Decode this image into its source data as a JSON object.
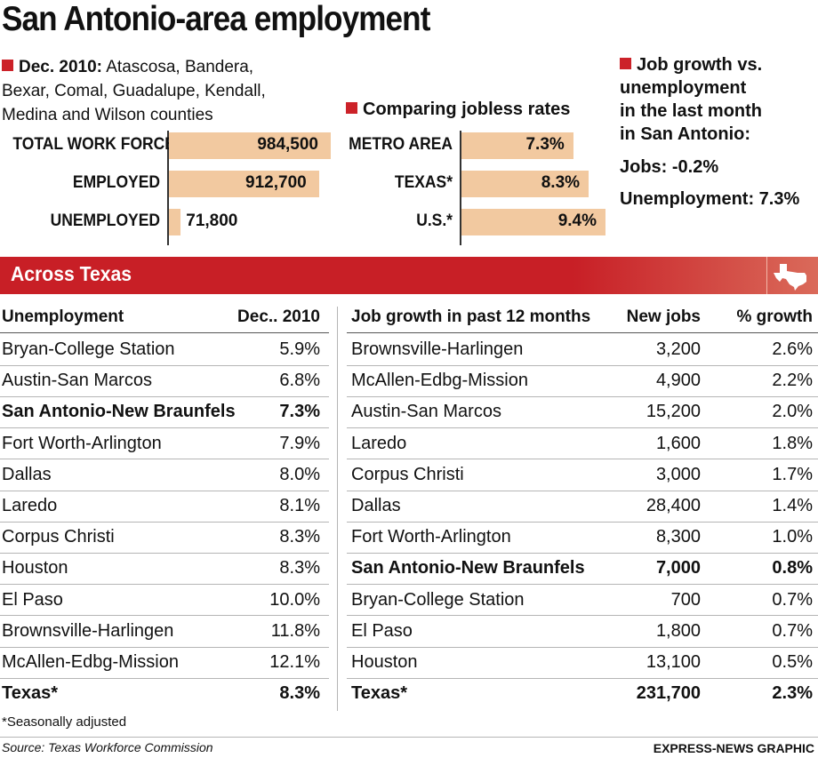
{
  "title": "San Antonio-area employment",
  "intro": {
    "lead": "Dec. 2010:",
    "text": " Atascosa, Bandera, Bexar, Comal, Guadalupe, Kendall, Medina and Wilson counties"
  },
  "workforce": {
    "rows": [
      {
        "label": "TOTAL WORK FORCE",
        "value_label": "984,500",
        "value": 984500
      },
      {
        "label": "EMPLOYED",
        "value_label": "912,700",
        "value": 912700
      },
      {
        "label": "UNEMPLOYED",
        "value_label": "71,800",
        "value": 71800
      }
    ]
  },
  "jobless": {
    "heading": "Comparing jobless rates",
    "rows": [
      {
        "label": "METRO AREA",
        "value_label": "7.3%",
        "value": 7.3
      },
      {
        "label": "TEXAS*",
        "value_label": "8.3%",
        "value": 8.3
      },
      {
        "label": "U.S.*",
        "value_label": "9.4%",
        "value": 9.4
      }
    ]
  },
  "growth_box": {
    "heading_lines": [
      "Job growth vs.",
      "unemployment",
      "in the last month",
      "in San Antonio:"
    ],
    "jobs": "Jobs: -0.2%",
    "unemployment": "Unemployment: 7.3%"
  },
  "banner": {
    "label": "Across Texas",
    "icon": "texas-map-icon"
  },
  "unemployment_table": {
    "headers": [
      "Unemployment",
      "Dec.. 2010"
    ],
    "rows": [
      {
        "area": "Bryan-College Station",
        "rate": "5.9%",
        "bold": false
      },
      {
        "area": "Austin-San Marcos",
        "rate": "6.8%",
        "bold": false
      },
      {
        "area": "San Antonio-New Braunfels",
        "rate": "7.3%",
        "bold": true
      },
      {
        "area": "Fort Worth-Arlington",
        "rate": "7.9%",
        "bold": false
      },
      {
        "area": "Dallas",
        "rate": "8.0%",
        "bold": false
      },
      {
        "area": "Laredo",
        "rate": "8.1%",
        "bold": false
      },
      {
        "area": "Corpus Christi",
        "rate": "8.3%",
        "bold": false
      },
      {
        "area": "Houston",
        "rate": "8.3%",
        "bold": false
      },
      {
        "area": "El Paso",
        "rate": "10.0%",
        "bold": false
      },
      {
        "area": "Brownsville-Harlingen",
        "rate": "11.8%",
        "bold": false
      },
      {
        "area": "McAllen-Edbg-Mission",
        "rate": "12.1%",
        "bold": false
      },
      {
        "area": "Texas*",
        "rate": "8.3%",
        "bold": true
      }
    ]
  },
  "growth_table": {
    "headers": [
      "Job growth in past 12 months",
      "New jobs",
      "% growth"
    ],
    "rows": [
      {
        "area": "Brownsville-Harlingen",
        "jobs": "3,200",
        "pct": "2.6%",
        "bold": false
      },
      {
        "area": "McAllen-Edbg-Mission",
        "jobs": "4,900",
        "pct": "2.2%",
        "bold": false
      },
      {
        "area": "Austin-San Marcos",
        "jobs": "15,200",
        "pct": "2.0%",
        "bold": false
      },
      {
        "area": "Laredo",
        "jobs": "1,600",
        "pct": "1.8%",
        "bold": false
      },
      {
        "area": "Corpus Christi",
        "jobs": "3,000",
        "pct": "1.7%",
        "bold": false
      },
      {
        "area": "Dallas",
        "jobs": "28,400",
        "pct": "1.4%",
        "bold": false
      },
      {
        "area": "Fort Worth-Arlington",
        "jobs": "8,300",
        "pct": "1.0%",
        "bold": false
      },
      {
        "area": "San Antonio-New Braunfels",
        "jobs": "7,000",
        "pct": "0.8%",
        "bold": true
      },
      {
        "area": "Bryan-College Station",
        "jobs": "700",
        "pct": "0.7%",
        "bold": false
      },
      {
        "area": "El Paso",
        "jobs": "1,800",
        "pct": "0.7%",
        "bold": false
      },
      {
        "area": "Houston",
        "jobs": "13,100",
        "pct": "0.5%",
        "bold": false
      },
      {
        "area": "Texas*",
        "jobs": "231,700",
        "pct": "2.3%",
        "bold": true
      }
    ]
  },
  "footnote": "*Seasonally adjusted",
  "source": "Source: Texas Workforce Commission",
  "credit": "EXPRESS-NEWS GRAPHIC",
  "colors": {
    "accent": "#cc2229",
    "bar": "#f2c9a0"
  },
  "chart_data": [
    {
      "type": "bar",
      "categories": [
        "TOTAL WORK FORCE",
        "EMPLOYED",
        "UNEMPLOYED"
      ],
      "values": [
        984500,
        912700,
        71800
      ]
    },
    {
      "type": "bar",
      "title": "Comparing jobless rates",
      "categories": [
        "METRO AREA",
        "TEXAS*",
        "U.S.*"
      ],
      "values": [
        7.3,
        8.3,
        9.4
      ]
    },
    {
      "type": "table",
      "columns": [
        "Unemployment",
        "Dec.. 2010"
      ],
      "rows": [
        [
          "Bryan-College Station",
          "5.9%"
        ],
        [
          "Austin-San Marcos",
          "6.8%"
        ],
        [
          "San Antonio-New Braunfels",
          "7.3%"
        ],
        [
          "Fort Worth-Arlington",
          "7.9%"
        ],
        [
          "Dallas",
          "8.0%"
        ],
        [
          "Laredo",
          "8.1%"
        ],
        [
          "Corpus Christi",
          "8.3%"
        ],
        [
          "Houston",
          "8.3%"
        ],
        [
          "El Paso",
          "10.0%"
        ],
        [
          "Brownsville-Harlingen",
          "11.8%"
        ],
        [
          "McAllen-Edbg-Mission",
          "12.1%"
        ],
        [
          "Texas*",
          "8.3%"
        ]
      ]
    },
    {
      "type": "table",
      "columns": [
        "Job growth in past 12 months",
        "New jobs",
        "% growth"
      ],
      "rows": [
        [
          "Brownsville-Harlingen",
          "3,200",
          "2.6%"
        ],
        [
          "McAllen-Edbg-Mission",
          "4,900",
          "2.2%"
        ],
        [
          "Austin-San Marcos",
          "15,200",
          "2.0%"
        ],
        [
          "Laredo",
          "1,600",
          "1.8%"
        ],
        [
          "Corpus Christi",
          "3,000",
          "1.7%"
        ],
        [
          "Dallas",
          "28,400",
          "1.4%"
        ],
        [
          "Fort Worth-Arlington",
          "8,300",
          "1.0%"
        ],
        [
          "San Antonio-New Braunfels",
          "7,000",
          "0.8%"
        ],
        [
          "Bryan-College Station",
          "700",
          "0.7%"
        ],
        [
          "El Paso",
          "1,800",
          "0.7%"
        ],
        [
          "Houston",
          "13,100",
          "0.5%"
        ],
        [
          "Texas*",
          "231,700",
          "2.3%"
        ]
      ]
    }
  ]
}
